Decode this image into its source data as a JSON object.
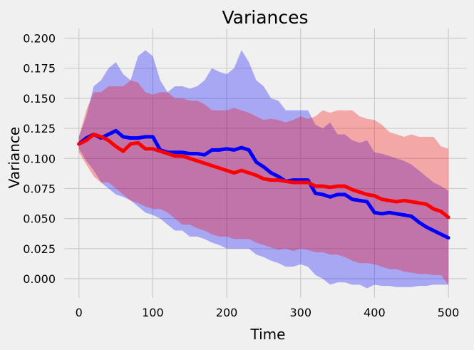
{
  "chart_data": {
    "type": "line",
    "title": "Variances",
    "xlabel": "Time",
    "ylabel": "Variance",
    "xlim": [
      -20,
      525
    ],
    "ylim": [
      -0.016,
      0.208
    ],
    "xticks": [
      0,
      100,
      200,
      300,
      400,
      500
    ],
    "xtick_labels": [
      "0",
      "100",
      "200",
      "300",
      "400",
      "500"
    ],
    "yticks": [
      0.0,
      0.025,
      0.05,
      0.075,
      0.1,
      0.125,
      0.15,
      0.175,
      0.2
    ],
    "ytick_labels": [
      "0.000",
      "0.025",
      "0.050",
      "0.075",
      "0.100",
      "0.125",
      "0.150",
      "0.175",
      "0.200"
    ],
    "grid": true,
    "series": [
      {
        "color": "#0000ff",
        "band_color": "#0000ff",
        "band_opacity": 0.3,
        "x": [
          0,
          10,
          20,
          30,
          40,
          50,
          60,
          70,
          80,
          90,
          100,
          110,
          120,
          130,
          140,
          150,
          160,
          170,
          180,
          190,
          200,
          210,
          220,
          230,
          240,
          250,
          260,
          270,
          280,
          290,
          300,
          310,
          320,
          330,
          340,
          350,
          360,
          370,
          380,
          390,
          400,
          410,
          420,
          430,
          440,
          450,
          460,
          470,
          480,
          490,
          500
        ],
        "values": [
          0.112,
          0.117,
          0.12,
          0.117,
          0.12,
          0.123,
          0.118,
          0.117,
          0.117,
          0.118,
          0.118,
          0.107,
          0.105,
          0.105,
          0.105,
          0.104,
          0.104,
          0.103,
          0.107,
          0.107,
          0.108,
          0.107,
          0.109,
          0.107,
          0.097,
          0.093,
          0.088,
          0.085,
          0.081,
          0.082,
          0.082,
          0.082,
          0.071,
          0.07,
          0.068,
          0.07,
          0.07,
          0.066,
          0.065,
          0.064,
          0.055,
          0.054,
          0.055,
          0.054,
          0.053,
          0.052,
          0.047,
          0.043,
          0.04,
          0.037,
          0.034
        ],
        "upper": [
          0.118,
          0.135,
          0.16,
          0.165,
          0.175,
          0.18,
          0.17,
          0.165,
          0.185,
          0.19,
          0.185,
          0.165,
          0.155,
          0.16,
          0.16,
          0.158,
          0.16,
          0.165,
          0.175,
          0.172,
          0.17,
          0.175,
          0.19,
          0.18,
          0.165,
          0.16,
          0.15,
          0.148,
          0.14,
          0.14,
          0.14,
          0.14,
          0.128,
          0.125,
          0.13,
          0.12,
          0.12,
          0.115,
          0.113,
          0.115,
          0.105,
          0.104,
          0.102,
          0.1,
          0.098,
          0.095,
          0.09,
          0.085,
          0.08,
          0.077,
          0.073
        ],
        "lower": [
          0.108,
          0.098,
          0.09,
          0.08,
          0.075,
          0.07,
          0.068,
          0.065,
          0.06,
          0.055,
          0.053,
          0.05,
          0.045,
          0.04,
          0.04,
          0.035,
          0.035,
          0.033,
          0.03,
          0.028,
          0.025,
          0.025,
          0.025,
          0.025,
          0.02,
          0.018,
          0.015,
          0.013,
          0.01,
          0.01,
          0.012,
          0.01,
          0.003,
          0.0,
          -0.005,
          -0.003,
          -0.003,
          -0.005,
          -0.005,
          -0.008,
          -0.005,
          -0.006,
          -0.006,
          -0.007,
          -0.007,
          -0.007,
          -0.006,
          -0.006,
          -0.005,
          -0.005,
          -0.005
        ]
      },
      {
        "color": "#ff0000",
        "band_color": "#ff0000",
        "band_opacity": 0.3,
        "x": [
          0,
          10,
          20,
          30,
          40,
          50,
          60,
          70,
          80,
          90,
          100,
          110,
          120,
          130,
          140,
          150,
          160,
          170,
          180,
          190,
          200,
          210,
          220,
          230,
          240,
          250,
          260,
          270,
          280,
          290,
          300,
          310,
          320,
          330,
          340,
          350,
          360,
          370,
          380,
          390,
          400,
          410,
          420,
          430,
          440,
          450,
          460,
          470,
          480,
          490,
          500
        ],
        "values": [
          0.112,
          0.115,
          0.12,
          0.118,
          0.115,
          0.11,
          0.106,
          0.112,
          0.113,
          0.108,
          0.108,
          0.106,
          0.104,
          0.102,
          0.102,
          0.1,
          0.098,
          0.096,
          0.094,
          0.092,
          0.09,
          0.088,
          0.09,
          0.088,
          0.086,
          0.083,
          0.082,
          0.082,
          0.081,
          0.08,
          0.08,
          0.08,
          0.077,
          0.077,
          0.076,
          0.077,
          0.077,
          0.074,
          0.072,
          0.07,
          0.069,
          0.066,
          0.065,
          0.064,
          0.065,
          0.064,
          0.063,
          0.062,
          0.058,
          0.056,
          0.051
        ],
        "upper": [
          0.118,
          0.14,
          0.155,
          0.155,
          0.16,
          0.16,
          0.16,
          0.165,
          0.163,
          0.155,
          0.153,
          0.155,
          0.155,
          0.15,
          0.15,
          0.148,
          0.148,
          0.145,
          0.14,
          0.14,
          0.14,
          0.142,
          0.14,
          0.138,
          0.135,
          0.132,
          0.133,
          0.132,
          0.13,
          0.132,
          0.135,
          0.133,
          0.135,
          0.14,
          0.138,
          0.14,
          0.14,
          0.14,
          0.135,
          0.133,
          0.132,
          0.128,
          0.122,
          0.12,
          0.118,
          0.12,
          0.118,
          0.118,
          0.118,
          0.11,
          0.108
        ],
        "lower": [
          0.105,
          0.095,
          0.085,
          0.08,
          0.08,
          0.075,
          0.07,
          0.065,
          0.063,
          0.06,
          0.058,
          0.058,
          0.055,
          0.05,
          0.045,
          0.045,
          0.042,
          0.04,
          0.037,
          0.035,
          0.035,
          0.033,
          0.033,
          0.033,
          0.03,
          0.028,
          0.026,
          0.024,
          0.025,
          0.023,
          0.025,
          0.024,
          0.022,
          0.022,
          0.02,
          0.02,
          0.018,
          0.015,
          0.013,
          0.013,
          0.012,
          0.01,
          0.008,
          0.008,
          0.006,
          0.005,
          0.004,
          0.004,
          0.003,
          0.003,
          -0.005
        ]
      }
    ]
  }
}
